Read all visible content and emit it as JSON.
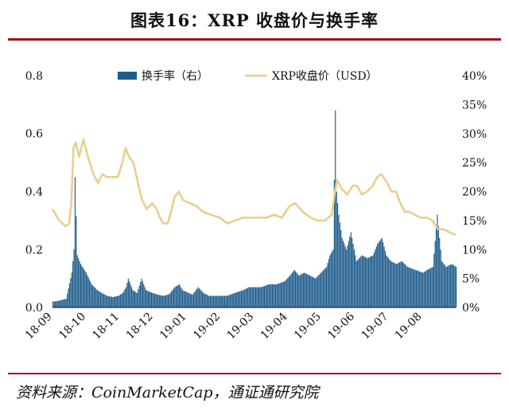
{
  "header": {
    "title": "图表16：XRP 收盘价与换手率"
  },
  "footer": {
    "source": "资料来源：CoinMarketCap，通证通研究院"
  },
  "colors": {
    "bars": "#1f5c8c",
    "line": "#e8cf8c",
    "rule": "#a60f1a"
  },
  "chart_data": {
    "type": "bar+line",
    "x_tick_labels": [
      "18-09",
      "18-10",
      "18-11",
      "18-12",
      "19-01",
      "19-02",
      "19-03",
      "19-04",
      "19-05",
      "19-06",
      "19-07",
      "19-08"
    ],
    "x_range": [
      "2018-09-01",
      "2019-08-31"
    ],
    "y_left": {
      "range": [
        0,
        0.8
      ],
      "tick_labels": [
        "0.0",
        "0.2",
        "0.4",
        "0.6",
        "0.8"
      ]
    },
    "y_right": {
      "range": [
        0,
        40
      ],
      "unit": "%",
      "tick_labels": [
        "0%",
        "5%",
        "10%",
        "15%",
        "20%",
        "25%",
        "30%",
        "35%",
        "40%"
      ]
    },
    "legend": {
      "placement": "top",
      "entries": [
        "换手率（右）",
        "XRP收盘价（USD）"
      ]
    },
    "series": [
      {
        "name": "XRP收盘价（USD）",
        "type": "line",
        "axis": "left",
        "points": [
          [
            "2018-09-01",
            0.34
          ],
          [
            "2018-09-04",
            0.32
          ],
          [
            "2018-09-07",
            0.3
          ],
          [
            "2018-09-10",
            0.29
          ],
          [
            "2018-09-13",
            0.28
          ],
          [
            "2018-09-16",
            0.29
          ],
          [
            "2018-09-18",
            0.36
          ],
          [
            "2018-09-20",
            0.55
          ],
          [
            "2018-09-22",
            0.57
          ],
          [
            "2018-09-25",
            0.52
          ],
          [
            "2018-09-29",
            0.58
          ],
          [
            "2018-10-03",
            0.52
          ],
          [
            "2018-10-08",
            0.46
          ],
          [
            "2018-10-12",
            0.43
          ],
          [
            "2018-10-16",
            0.46
          ],
          [
            "2018-10-20",
            0.45
          ],
          [
            "2018-10-25",
            0.45
          ],
          [
            "2018-10-30",
            0.45
          ],
          [
            "2018-11-03",
            0.5
          ],
          [
            "2018-11-06",
            0.55
          ],
          [
            "2018-11-09",
            0.52
          ],
          [
            "2018-11-13",
            0.5
          ],
          [
            "2018-11-16",
            0.45
          ],
          [
            "2018-11-19",
            0.4
          ],
          [
            "2018-11-21",
            0.37
          ],
          [
            "2018-11-25",
            0.34
          ],
          [
            "2018-11-30",
            0.36
          ],
          [
            "2018-12-04",
            0.34
          ],
          [
            "2018-12-07",
            0.31
          ],
          [
            "2018-12-10",
            0.29
          ],
          [
            "2018-12-14",
            0.29
          ],
          [
            "2018-12-17",
            0.33
          ],
          [
            "2018-12-20",
            0.38
          ],
          [
            "2018-12-24",
            0.4
          ],
          [
            "2018-12-28",
            0.37
          ],
          [
            "2019-01-03",
            0.36
          ],
          [
            "2019-01-09",
            0.35
          ],
          [
            "2019-01-15",
            0.33
          ],
          [
            "2019-01-22",
            0.32
          ],
          [
            "2019-01-30",
            0.31
          ],
          [
            "2019-02-06",
            0.29
          ],
          [
            "2019-02-13",
            0.3
          ],
          [
            "2019-02-20",
            0.31
          ],
          [
            "2019-02-27",
            0.31
          ],
          [
            "2019-03-06",
            0.31
          ],
          [
            "2019-03-13",
            0.31
          ],
          [
            "2019-03-20",
            0.32
          ],
          [
            "2019-03-27",
            0.31
          ],
          [
            "2019-04-03",
            0.35
          ],
          [
            "2019-04-08",
            0.36
          ],
          [
            "2019-04-15",
            0.33
          ],
          [
            "2019-04-22",
            0.31
          ],
          [
            "2019-04-28",
            0.3
          ],
          [
            "2019-05-05",
            0.3
          ],
          [
            "2019-05-11",
            0.32
          ],
          [
            "2019-05-14",
            0.4
          ],
          [
            "2019-05-16",
            0.44
          ],
          [
            "2019-05-20",
            0.41
          ],
          [
            "2019-05-25",
            0.39
          ],
          [
            "2019-05-30",
            0.42
          ],
          [
            "2019-06-03",
            0.42
          ],
          [
            "2019-06-07",
            0.39
          ],
          [
            "2019-06-12",
            0.4
          ],
          [
            "2019-06-17",
            0.42
          ],
          [
            "2019-06-21",
            0.45
          ],
          [
            "2019-06-25",
            0.46
          ],
          [
            "2019-06-30",
            0.43
          ],
          [
            "2019-07-04",
            0.4
          ],
          [
            "2019-07-08",
            0.4
          ],
          [
            "2019-07-12",
            0.36
          ],
          [
            "2019-07-16",
            0.33
          ],
          [
            "2019-07-20",
            0.33
          ],
          [
            "2019-07-25",
            0.32
          ],
          [
            "2019-07-30",
            0.31
          ],
          [
            "2019-08-05",
            0.31
          ],
          [
            "2019-08-10",
            0.3
          ],
          [
            "2019-08-15",
            0.27
          ],
          [
            "2019-08-20",
            0.27
          ],
          [
            "2019-08-25",
            0.26
          ],
          [
            "2019-08-31",
            0.25
          ]
        ]
      },
      {
        "name": "换手率（右）",
        "type": "bar",
        "axis": "right",
        "points": [
          [
            "2018-09-01",
            1.0
          ],
          [
            "2018-09-07",
            1.2
          ],
          [
            "2018-09-13",
            1.5
          ],
          [
            "2018-09-18",
            6.0
          ],
          [
            "2018-09-20",
            10.0
          ],
          [
            "2018-09-21",
            22.5
          ],
          [
            "2018-09-23",
            9.0
          ],
          [
            "2018-09-26",
            7.5
          ],
          [
            "2018-10-01",
            6.0
          ],
          [
            "2018-10-06",
            4.0
          ],
          [
            "2018-10-11",
            3.0
          ],
          [
            "2018-10-15",
            2.5
          ],
          [
            "2018-10-20",
            2.0
          ],
          [
            "2018-10-25",
            1.8
          ],
          [
            "2018-10-30",
            2.0
          ],
          [
            "2018-11-03",
            2.5
          ],
          [
            "2018-11-06",
            3.5
          ],
          [
            "2018-11-08",
            5.0
          ],
          [
            "2018-11-12",
            3.0
          ],
          [
            "2018-11-16",
            2.5
          ],
          [
            "2018-11-20",
            5.0
          ],
          [
            "2018-11-24",
            3.0
          ],
          [
            "2018-11-30",
            2.5
          ],
          [
            "2018-12-05",
            2.2
          ],
          [
            "2018-12-10",
            2.0
          ],
          [
            "2018-12-15",
            2.3
          ],
          [
            "2018-12-20",
            3.5
          ],
          [
            "2018-12-24",
            4.0
          ],
          [
            "2018-12-27",
            3.0
          ],
          [
            "2019-01-05",
            2.2
          ],
          [
            "2019-01-10",
            3.5
          ],
          [
            "2019-01-15",
            2.5
          ],
          [
            "2019-01-20",
            2.0
          ],
          [
            "2019-01-28",
            2.0
          ],
          [
            "2019-02-05",
            2.0
          ],
          [
            "2019-02-12",
            2.5
          ],
          [
            "2019-02-20",
            3.0
          ],
          [
            "2019-02-25",
            3.5
          ],
          [
            "2019-03-01",
            3.5
          ],
          [
            "2019-03-08",
            3.5
          ],
          [
            "2019-03-15",
            4.0
          ],
          [
            "2019-03-22",
            4.0
          ],
          [
            "2019-03-29",
            4.5
          ],
          [
            "2019-04-03",
            5.5
          ],
          [
            "2019-04-07",
            6.5
          ],
          [
            "2019-04-11",
            5.5
          ],
          [
            "2019-04-16",
            6.0
          ],
          [
            "2019-04-21",
            5.5
          ],
          [
            "2019-04-26",
            5.0
          ],
          [
            "2019-05-01",
            6.0
          ],
          [
            "2019-05-06",
            7.0
          ],
          [
            "2019-05-09",
            9.0
          ],
          [
            "2019-05-12",
            10.0
          ],
          [
            "2019-05-14",
            34.0
          ],
          [
            "2019-05-15",
            20.0
          ],
          [
            "2019-05-17",
            16.0
          ],
          [
            "2019-05-20",
            12.0
          ],
          [
            "2019-05-24",
            10.0
          ],
          [
            "2019-05-28",
            13.0
          ],
          [
            "2019-06-02",
            8.0
          ],
          [
            "2019-06-07",
            9.0
          ],
          [
            "2019-06-12",
            8.5
          ],
          [
            "2019-06-17",
            9.0
          ],
          [
            "2019-06-21",
            11.0
          ],
          [
            "2019-06-25",
            12.0
          ],
          [
            "2019-06-29",
            9.0
          ],
          [
            "2019-07-03",
            8.0
          ],
          [
            "2019-07-08",
            7.5
          ],
          [
            "2019-07-13",
            8.0
          ],
          [
            "2019-07-18",
            7.0
          ],
          [
            "2019-07-25",
            6.5
          ],
          [
            "2019-08-01",
            6.0
          ],
          [
            "2019-08-05",
            6.5
          ],
          [
            "2019-08-10",
            7.0
          ],
          [
            "2019-08-14",
            16.0
          ],
          [
            "2019-08-18",
            8.0
          ],
          [
            "2019-08-22",
            7.0
          ],
          [
            "2019-08-27",
            7.5
          ],
          [
            "2019-08-31",
            7.0
          ]
        ]
      }
    ]
  }
}
